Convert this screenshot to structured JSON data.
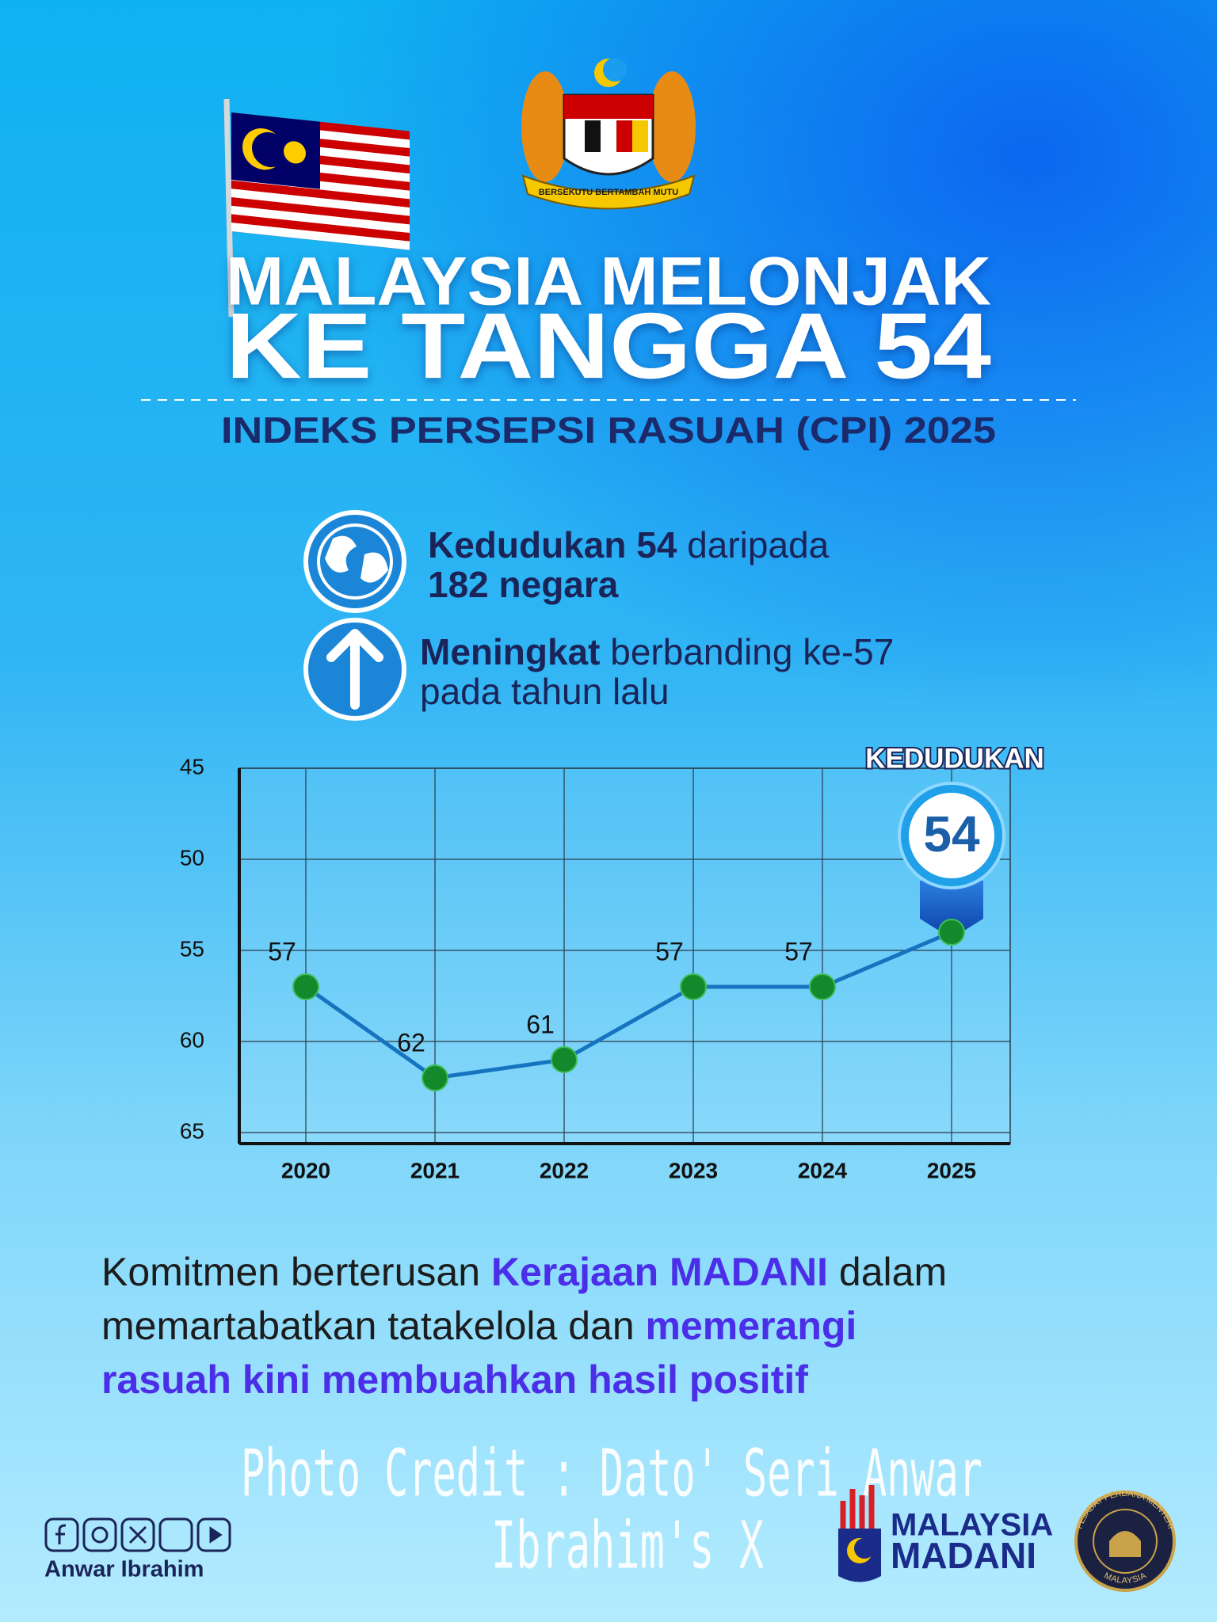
{
  "header": {
    "crest_motto": "BERSEKUTU BERTAMBAH MUTU",
    "title_line1": "MALAYSIA MELONJAK",
    "title_line2": "KE TANGGA 54",
    "subtitle": "INDEKS PERSEPSI RASUAH (CPI) 2025"
  },
  "facts": [
    {
      "lines": [
        [
          {
            "text": "Kedudukan 54",
            "bold": true
          },
          {
            "text": " daripada",
            "bold": false
          }
        ],
        [
          {
            "text": "182 negara",
            "bold": true
          }
        ]
      ]
    },
    {
      "lines": [
        [
          {
            "text": "Meningkat",
            "bold": true
          },
          {
            "text": " berbanding ke-57",
            "bold": false
          }
        ],
        [
          {
            "text": "pada tahun lalu",
            "bold": false
          }
        ]
      ]
    }
  ],
  "chart_data": {
    "type": "line",
    "categories": [
      "2020",
      "2021",
      "2022",
      "2023",
      "2024",
      "2025"
    ],
    "values": [
      57,
      62,
      61,
      57,
      57,
      54
    ],
    "color": "#1673bf",
    "marker_color": "#14892b",
    "ylim": [
      45,
      65
    ],
    "yticks": [
      45,
      50,
      55,
      60,
      65
    ],
    "y_inverted": true,
    "grid": true,
    "badge_label": "KEDUDUKAN"
  },
  "body": {
    "lines": [
      [
        {
          "text": "Komitmen berterusan ",
          "emphasis": false
        },
        {
          "text": "Kerajaan MADANI",
          "emphasis": true
        },
        {
          "text": " dalam",
          "emphasis": false
        }
      ],
      [
        {
          "text": "memartabatkan tatakelola dan ",
          "emphasis": false
        },
        {
          "text": "memerangi",
          "emphasis": true
        }
      ],
      [
        {
          "text": "rasuah kini membuahkan hasil positif",
          "emphasis": true
        }
      ]
    ]
  },
  "footer": {
    "credit_lines": [
      "Photo Credit : Dato' Seri Anwar",
      "Ibrahim's X"
    ],
    "social_name": "Anwar Ibrahim",
    "logo_line1": "MALAYSIA",
    "logo_line2": "MADANI",
    "seal_top": "PEJABAT PERDANA MENTERI",
    "seal_bottom": "MALAYSIA"
  }
}
